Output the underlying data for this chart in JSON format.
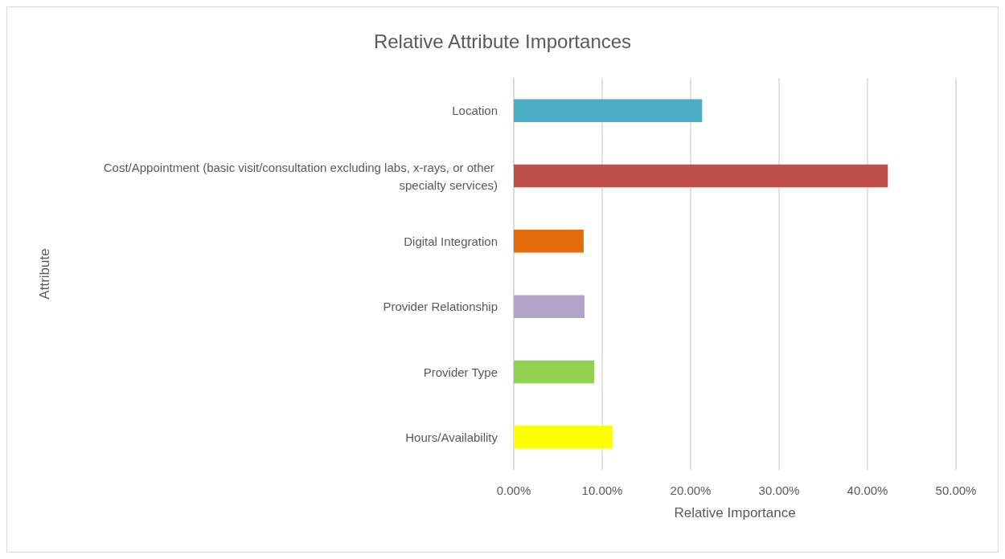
{
  "chart_data": {
    "type": "bar",
    "orientation": "horizontal",
    "title": "Relative Attribute Importances",
    "xlabel": "Relative Importance",
    "ylabel": "Attribute",
    "categories": [
      "Location",
      "Cost/Appointment (basic visit/consultation excluding labs, x-rays, or other specialty services)",
      "Digital Integration",
      "Provider Relationship",
      "Provider Type",
      "Hours/Availability"
    ],
    "values": [
      21.3,
      42.3,
      7.9,
      8.0,
      9.1,
      11.2
    ],
    "colors": [
      "#4bacc6",
      "#c0504d",
      "#e46c0a",
      "#b3a2c7",
      "#92d050",
      "#ffff00"
    ],
    "xlim": [
      0,
      50
    ],
    "xticks": [
      {
        "value": 0,
        "label": "0.00%"
      },
      {
        "value": 10,
        "label": "10.00%"
      },
      {
        "value": 20,
        "label": "20.00%"
      },
      {
        "value": 30,
        "label": "30.00%"
      },
      {
        "value": 40,
        "label": "40.00%"
      },
      {
        "value": 50,
        "label": "50.00%"
      }
    ],
    "grid": "x"
  }
}
